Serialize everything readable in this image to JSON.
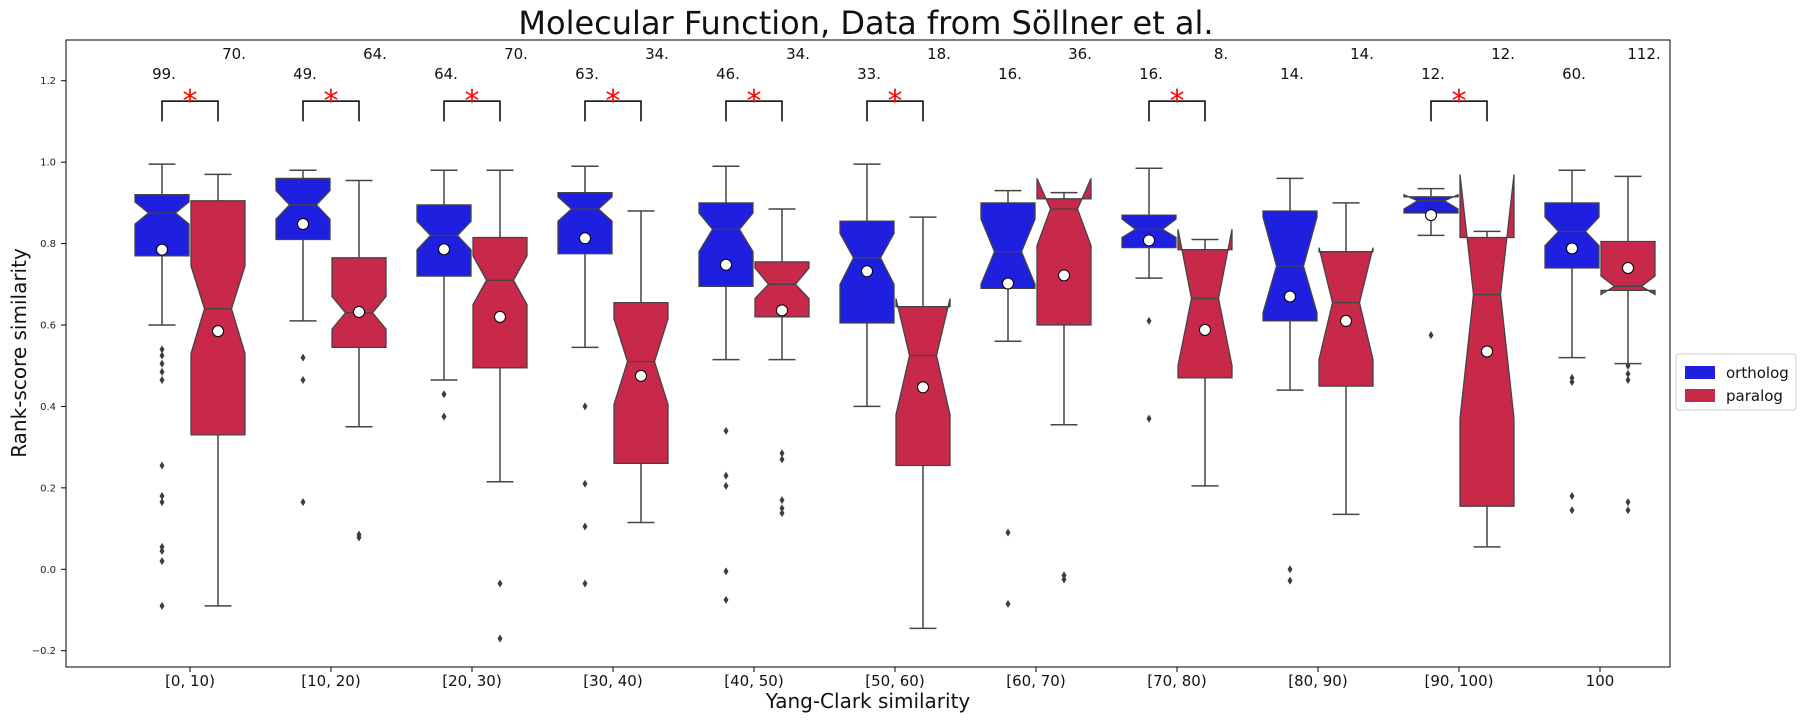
{
  "chart_data": {
    "type": "boxplot",
    "title": "Molecular Function, Data from Söllner et al.",
    "xlabel": "Yang-Clark similarity",
    "ylabel": "Rank-score similarity",
    "ylim": [
      -0.24,
      1.3
    ],
    "yticks": [
      -0.2,
      0.0,
      0.2,
      0.4,
      0.6,
      0.8,
      1.0,
      1.2
    ],
    "ytick_labels": [
      "−0.2",
      "0.0",
      "0.2",
      "0.4",
      "0.6",
      "0.8",
      "1.0",
      "1.2"
    ],
    "legend_position": "right",
    "series": [
      {
        "name": "ortholog",
        "color": "#1f1fe0"
      },
      {
        "name": "paralog",
        "color": "#c8284a"
      }
    ],
    "groups": [
      {
        "category": "[0, 10)",
        "significant": true,
        "ortholog": {
          "count": "99.",
          "q1": 0.77,
          "median": 0.875,
          "q3": 0.92,
          "whislo": 0.6,
          "whishi": 0.995,
          "notch_lo": 0.848,
          "notch_hi": 0.902,
          "mean": 0.785,
          "fliers": [
            0.54,
            0.525,
            0.505,
            0.485,
            0.465,
            0.255,
            0.18,
            0.165,
            0.055,
            0.045,
            0.02,
            -0.09
          ]
        },
        "paralog": {
          "count": "70.",
          "q1": 0.33,
          "median": 0.64,
          "q3": 0.905,
          "whislo": -0.09,
          "whishi": 0.97,
          "notch_lo": 0.53,
          "notch_hi": 0.745,
          "mean": 0.585,
          "fliers": []
        }
      },
      {
        "category": "[10, 20)",
        "significant": true,
        "ortholog": {
          "count": "49.",
          "q1": 0.81,
          "median": 0.895,
          "q3": 0.96,
          "whislo": 0.61,
          "whishi": 0.98,
          "notch_lo": 0.86,
          "notch_hi": 0.93,
          "mean": 0.848,
          "fliers": [
            0.52,
            0.465,
            0.165
          ]
        },
        "paralog": {
          "count": "64.",
          "q1": 0.545,
          "median": 0.63,
          "q3": 0.765,
          "whislo": 0.35,
          "whishi": 0.955,
          "notch_lo": 0.59,
          "notch_hi": 0.67,
          "mean": 0.632,
          "fliers": [
            0.085,
            0.078
          ]
        }
      },
      {
        "category": "[20, 30)",
        "significant": true,
        "ortholog": {
          "count": "64.",
          "q1": 0.72,
          "median": 0.82,
          "q3": 0.895,
          "whislo": 0.465,
          "whishi": 0.98,
          "notch_lo": 0.785,
          "notch_hi": 0.855,
          "mean": 0.786,
          "fliers": [
            0.43,
            0.375
          ]
        },
        "paralog": {
          "count": "70.",
          "q1": 0.495,
          "median": 0.71,
          "q3": 0.815,
          "whislo": 0.215,
          "whishi": 0.98,
          "notch_lo": 0.65,
          "notch_hi": 0.77,
          "mean": 0.62,
          "fliers": [
            -0.035,
            -0.17
          ]
        }
      },
      {
        "category": "[30, 40)",
        "significant": true,
        "ortholog": {
          "count": "63.",
          "q1": 0.775,
          "median": 0.885,
          "q3": 0.925,
          "whislo": 0.545,
          "whishi": 0.99,
          "notch_lo": 0.855,
          "notch_hi": 0.915,
          "mean": 0.813,
          "fliers": [
            0.4,
            0.21,
            0.105,
            -0.035
          ]
        },
        "paralog": {
          "count": "34.",
          "q1": 0.26,
          "median": 0.51,
          "q3": 0.655,
          "whislo": 0.115,
          "whishi": 0.88,
          "notch_lo": 0.405,
          "notch_hi": 0.615,
          "mean": 0.475,
          "fliers": []
        }
      },
      {
        "category": "[40, 50)",
        "significant": true,
        "ortholog": {
          "count": "46.",
          "q1": 0.695,
          "median": 0.835,
          "q3": 0.9,
          "whislo": 0.515,
          "whishi": 0.99,
          "notch_lo": 0.78,
          "notch_hi": 0.875,
          "mean": 0.748,
          "fliers": [
            0.34,
            0.23,
            0.205,
            -0.005,
            -0.075
          ]
        },
        "paralog": {
          "count": "34.",
          "q1": 0.62,
          "median": 0.7,
          "q3": 0.755,
          "whislo": 0.515,
          "whishi": 0.885,
          "notch_lo": 0.665,
          "notch_hi": 0.74,
          "mean": 0.636,
          "fliers": [
            0.285,
            0.27,
            0.17,
            0.15,
            0.138
          ]
        }
      },
      {
        "category": "[50, 60)",
        "significant": true,
        "ortholog": {
          "count": "33.",
          "q1": 0.605,
          "median": 0.765,
          "q3": 0.855,
          "whislo": 0.4,
          "whishi": 0.995,
          "notch_lo": 0.7,
          "notch_hi": 0.825,
          "mean": 0.732,
          "fliers": []
        },
        "paralog": {
          "count": "18.",
          "q1": 0.255,
          "median": 0.525,
          "q3": 0.645,
          "whislo": -0.145,
          "whishi": 0.865,
          "notch_lo": 0.38,
          "notch_hi": 0.665,
          "mean": 0.447,
          "fliers": []
        }
      },
      {
        "category": "[60, 70)",
        "significant": false,
        "ortholog": {
          "count": "16.",
          "q1": 0.69,
          "median": 0.78,
          "q3": 0.9,
          "whislo": 0.56,
          "whishi": 0.93,
          "notch_lo": 0.7,
          "notch_hi": 0.86,
          "mean": 0.702,
          "fliers": [
            0.09,
            -0.085
          ]
        },
        "paralog": {
          "count": "36.",
          "q1": 0.6,
          "median": 0.885,
          "q3": 0.91,
          "whislo": 0.355,
          "whishi": 0.925,
          "notch_lo": 0.795,
          "notch_hi": 0.96,
          "mean": 0.722,
          "fliers": [
            -0.015,
            -0.025
          ]
        }
      },
      {
        "category": "[70, 80)",
        "significant": true,
        "ortholog": {
          "count": "16.",
          "q1": 0.79,
          "median": 0.835,
          "q3": 0.87,
          "whislo": 0.715,
          "whishi": 0.985,
          "notch_lo": 0.815,
          "notch_hi": 0.86,
          "mean": 0.808,
          "fliers": [
            0.61,
            0.37
          ]
        },
        "paralog": {
          "count": "8.",
          "q1": 0.47,
          "median": 0.665,
          "q3": 0.785,
          "whislo": 0.205,
          "whishi": 0.81,
          "notch_lo": 0.5,
          "notch_hi": 0.835,
          "mean": 0.588,
          "fliers": []
        }
      },
      {
        "category": "[80, 90)",
        "significant": false,
        "ortholog": {
          "count": "14.",
          "q1": 0.61,
          "median": 0.745,
          "q3": 0.88,
          "whislo": 0.44,
          "whishi": 0.96,
          "notch_lo": 0.63,
          "notch_hi": 0.865,
          "mean": 0.67,
          "fliers": [
            0.0,
            -0.028
          ]
        },
        "paralog": {
          "count": "14.",
          "q1": 0.45,
          "median": 0.655,
          "q3": 0.78,
          "whislo": 0.135,
          "whishi": 0.9,
          "notch_lo": 0.515,
          "notch_hi": 0.79,
          "mean": 0.61,
          "fliers": []
        }
      },
      {
        "category": "[90, 100)",
        "significant": true,
        "ortholog": {
          "count": "12.",
          "q1": 0.875,
          "median": 0.905,
          "q3": 0.915,
          "whislo": 0.82,
          "whishi": 0.935,
          "notch_lo": 0.885,
          "notch_hi": 0.92,
          "mean": 0.87,
          "fliers": [
            0.575
          ]
        },
        "paralog": {
          "count": "12.",
          "q1": 0.155,
          "median": 0.675,
          "q3": 0.815,
          "whislo": 0.055,
          "whishi": 0.83,
          "notch_lo": 0.37,
          "notch_hi": 0.97,
          "mean": 0.535,
          "fliers": []
        }
      },
      {
        "category": "100",
        "significant": false,
        "ortholog": {
          "count": "60.",
          "q1": 0.74,
          "median": 0.83,
          "q3": 0.9,
          "whislo": 0.52,
          "whishi": 0.98,
          "notch_lo": 0.795,
          "notch_hi": 0.865,
          "mean": 0.788,
          "fliers": [
            0.47,
            0.46,
            0.18,
            0.145
          ]
        },
        "paralog": {
          "count": "112.",
          "q1": 0.685,
          "median": 0.695,
          "q3": 0.805,
          "whislo": 0.505,
          "whishi": 0.965,
          "notch_lo": 0.675,
          "notch_hi": 0.72,
          "mean": 0.74,
          "fliers": [
            0.5,
            0.48,
            0.465,
            0.165,
            0.145
          ]
        }
      }
    ]
  },
  "significance_marker": "*"
}
